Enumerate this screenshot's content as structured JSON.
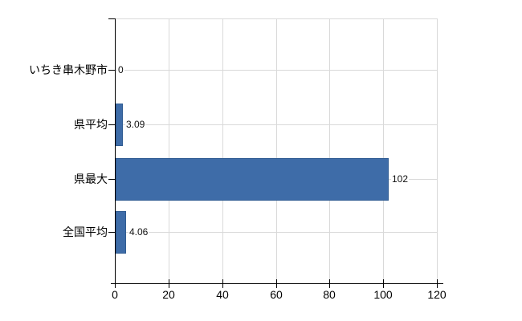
{
  "chart_data": {
    "type": "bar",
    "orientation": "horizontal",
    "title": "",
    "xlabel": "",
    "ylabel": "",
    "categories": [
      "いちき串木野市",
      "県平均",
      "県最大",
      "全国平均"
    ],
    "values": [
      0,
      3.09,
      102,
      4.06
    ],
    "value_labels": [
      "0",
      "3.09",
      "102",
      "4.06"
    ],
    "xlim": [
      0,
      120
    ],
    "x_ticks": [
      0,
      20,
      40,
      60,
      80,
      100,
      120
    ],
    "x_tick_labels": [
      "0",
      "20",
      "40",
      "60",
      "80",
      "100",
      "120"
    ],
    "grid": true,
    "legend": "none",
    "colors": {
      "bar_fill": "#3e6ca8",
      "bar_border": "#315d93",
      "gridline": "#d9d9d9",
      "axis": "#000000",
      "text": "#000000"
    }
  }
}
